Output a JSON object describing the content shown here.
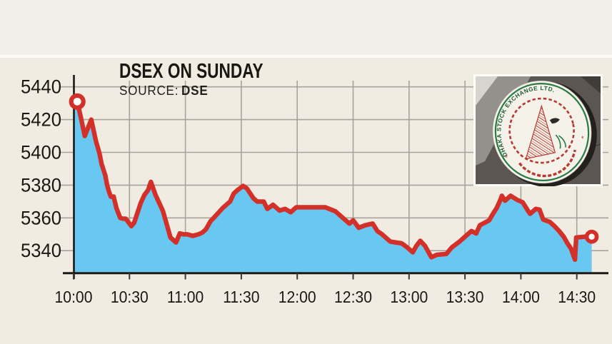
{
  "header": {
    "title": "DSEX ON SUNDAY",
    "source_label": "SOURCE:",
    "source_value": "DSE"
  },
  "logo": {
    "arc_text": "DHAKA STOCK EXCHANGE LTD.",
    "description": "photo of circular Dhaka Stock Exchange wall sign"
  },
  "colors": {
    "bg_top": "#f2efe9",
    "bg_main": "#f0ece2",
    "divider": "#fcfbf7",
    "grid": "#a6a49c",
    "axis": "#1c1914",
    "line_red": "#d3302a",
    "area_blue": "#69c8f1",
    "text": "#1b1813",
    "logo_wall": "#5b5652",
    "logo_green": "#2a7a44",
    "logo_red": "#b73a31"
  },
  "chart_data": {
    "type": "area",
    "title": "DSEX ON SUNDAY",
    "source": "DSE",
    "grid": true,
    "legend": false,
    "x_axis": {
      "unit": "minutes after 10:00",
      "tick_minutes": [
        0,
        30,
        60,
        90,
        120,
        150,
        180,
        210,
        240,
        270
      ],
      "tick_labels": [
        "10:00",
        "10:30",
        "11:00",
        "11:30",
        "12:00",
        "12:30",
        "13:00",
        "13:30",
        "14:00",
        "14:30"
      ]
    },
    "y_axis": {
      "ticks": [
        5440,
        5420,
        5400,
        5380,
        5360,
        5340
      ],
      "drawn_range": [
        5326,
        5447
      ]
    },
    "series": [
      {
        "name": "DSEX index",
        "points": [
          [
            0,
            5432
          ],
          [
            2,
            5431
          ],
          [
            4,
            5421
          ],
          [
            6,
            5410
          ],
          [
            9.5,
            5420
          ],
          [
            12,
            5407
          ],
          [
            14,
            5399
          ],
          [
            15,
            5393
          ],
          [
            17,
            5386
          ],
          [
            18,
            5380
          ],
          [
            19,
            5376
          ],
          [
            20,
            5373
          ],
          [
            21.5,
            5373
          ],
          [
            23,
            5366
          ],
          [
            25,
            5360
          ],
          [
            26.5,
            5359.5
          ],
          [
            28,
            5359.5
          ],
          [
            31,
            5355
          ],
          [
            32.5,
            5357
          ],
          [
            34,
            5362
          ],
          [
            36,
            5369
          ],
          [
            38,
            5374
          ],
          [
            40,
            5377
          ],
          [
            41.5,
            5382
          ],
          [
            44,
            5374
          ],
          [
            46,
            5369
          ],
          [
            48,
            5364
          ],
          [
            50,
            5356
          ],
          [
            52,
            5348
          ],
          [
            55,
            5345
          ],
          [
            57,
            5350.5
          ],
          [
            59,
            5350
          ],
          [
            61,
            5350
          ],
          [
            64,
            5349
          ],
          [
            67,
            5350
          ],
          [
            69,
            5351
          ],
          [
            71,
            5353
          ],
          [
            73.5,
            5358
          ],
          [
            76,
            5361
          ],
          [
            80,
            5366
          ],
          [
            84,
            5370
          ],
          [
            86,
            5375
          ],
          [
            88,
            5377
          ],
          [
            91,
            5379.5
          ],
          [
            93,
            5378
          ],
          [
            96.5,
            5372
          ],
          [
            98.5,
            5370
          ],
          [
            102,
            5370
          ],
          [
            104,
            5365.5
          ],
          [
            107,
            5368
          ],
          [
            110.5,
            5364.5
          ],
          [
            113.5,
            5365.5
          ],
          [
            116.5,
            5363.5
          ],
          [
            119.5,
            5366.5
          ],
          [
            135,
            5366.5
          ],
          [
            140.5,
            5364
          ],
          [
            143.5,
            5361
          ],
          [
            146.5,
            5358
          ],
          [
            148,
            5356.5
          ],
          [
            150,
            5358.5
          ],
          [
            153,
            5354
          ],
          [
            156.5,
            5355.5
          ],
          [
            160.5,
            5356.5
          ],
          [
            163,
            5352
          ],
          [
            165.5,
            5350
          ],
          [
            170,
            5345.5
          ],
          [
            176,
            5344.5
          ],
          [
            179,
            5342
          ],
          [
            182,
            5339
          ],
          [
            184,
            5343
          ],
          [
            186,
            5346
          ],
          [
            188.5,
            5343
          ],
          [
            192,
            5336
          ],
          [
            195,
            5337.5
          ],
          [
            200,
            5338
          ],
          [
            203,
            5342
          ],
          [
            207,
            5345.5
          ],
          [
            210,
            5348.5
          ],
          [
            213.5,
            5352
          ],
          [
            216,
            5350.5
          ],
          [
            218,
            5355.5
          ],
          [
            220.5,
            5357
          ],
          [
            223,
            5358.5
          ],
          [
            225,
            5362.5
          ],
          [
            227,
            5366
          ],
          [
            229,
            5371
          ],
          [
            229.8,
            5373.5
          ],
          [
            231.5,
            5370.5
          ],
          [
            234.5,
            5373.5
          ],
          [
            238,
            5371
          ],
          [
            241,
            5369.5
          ],
          [
            244,
            5364
          ],
          [
            245,
            5362.5
          ],
          [
            248,
            5365.5
          ],
          [
            250,
            5365
          ],
          [
            252,
            5359
          ],
          [
            255.5,
            5357.5
          ],
          [
            258,
            5355
          ],
          [
            260.5,
            5352
          ],
          [
            263,
            5348.5
          ],
          [
            265,
            5344.5
          ],
          [
            267,
            5341
          ],
          [
            269,
            5334.5
          ],
          [
            269.7,
            5348
          ],
          [
            276,
            5348.7
          ],
          [
            278,
            5348.5
          ]
        ]
      }
    ],
    "markers": {
      "open_point": {
        "t": 2,
        "value": 5431
      },
      "close_point": {
        "t": 278,
        "value": 5348.5
      }
    }
  }
}
